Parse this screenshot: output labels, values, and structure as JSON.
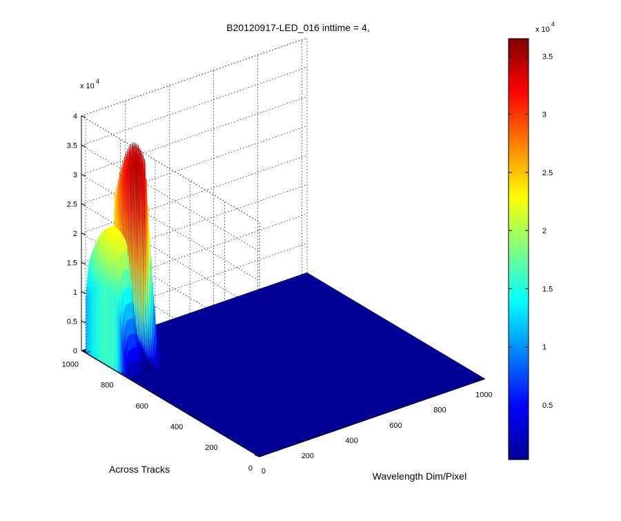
{
  "chart_data": {
    "type": "surface",
    "title": "B20120917-LED_016 inttime = 4,",
    "xlabel": "Wavelength Dim/Pixel",
    "ylabel": "Across Tracks",
    "zlabel": "",
    "xlim": [
      0,
      1024
    ],
    "ylim": [
      0,
      1024
    ],
    "zlim": [
      0,
      40000
    ],
    "x_ticks": [
      "0",
      "200",
      "400",
      "600",
      "800",
      "1000"
    ],
    "y_ticks": [
      "0",
      "200",
      "400",
      "600",
      "800",
      "1000"
    ],
    "z_ticks": [
      "0",
      "0.5",
      "1",
      "1.5",
      "2",
      "2.5",
      "3",
      "3.5",
      "4"
    ],
    "z_exponent": "x 10",
    "z_exponent_power": "4",
    "colorbar": {
      "colormap": "jet",
      "range": [
        300,
        36500
      ],
      "ticks": [
        "0.5",
        "1",
        "1.5",
        "2",
        "2.5",
        "3",
        "3.5"
      ],
      "exponent": "x 10",
      "exponent_power": "4"
    },
    "grid": true,
    "surface": {
      "nonzero_track_range": [
        760,
        1000
      ],
      "nonzero_wavelength_range": [
        0,
        175
      ],
      "peak1_wavelength": 35,
      "peak1_max": 23000,
      "peak2_wavelength": 135,
      "peak2_max": 36500,
      "floor_value": 300
    }
  }
}
